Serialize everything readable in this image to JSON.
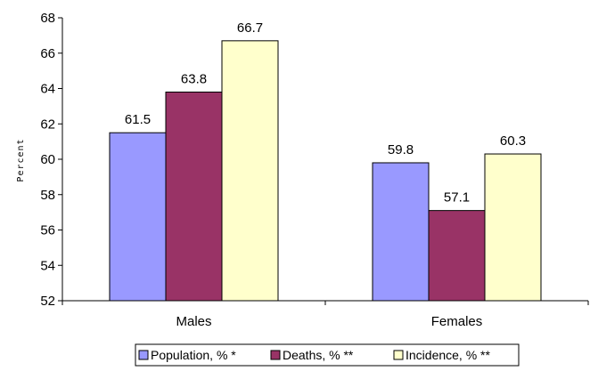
{
  "chart_data": {
    "type": "bar",
    "categories": [
      "Males",
      "Females"
    ],
    "series": [
      {
        "name": "Population, % *",
        "values": [
          61.5,
          59.8
        ],
        "color": "#9999ff"
      },
      {
        "name": "Deaths, % **",
        "values": [
          63.8,
          57.1
        ],
        "color": "#993366"
      },
      {
        "name": "Incidence, % **",
        "values": [
          66.7,
          60.3
        ],
        "color": "#ffffcc"
      }
    ],
    "ylabel": "Percent",
    "ylim": [
      52,
      68
    ],
    "yticks": [
      52,
      54,
      56,
      58,
      60,
      62,
      64,
      66,
      68
    ],
    "value_labels": [
      "61.5",
      "63.8",
      "66.7",
      "59.8",
      "57.1",
      "60.3"
    ],
    "legend_position": "bottom",
    "grid": false
  }
}
